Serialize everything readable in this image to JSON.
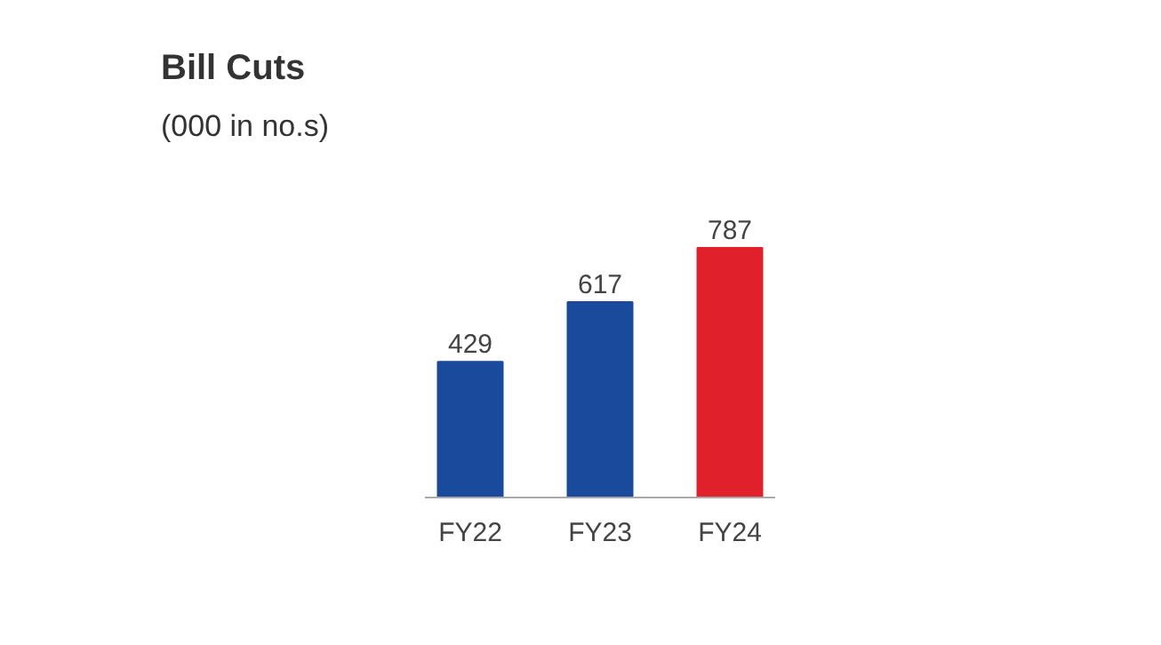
{
  "chart_data": {
    "type": "bar",
    "title": "Bill Cuts",
    "subtitle": "(000 in no.s)",
    "categories": [
      "FY22",
      "FY23",
      "FY24"
    ],
    "values": [
      429,
      617,
      787
    ],
    "colors": [
      "#1a4a9c",
      "#1a4a9c",
      "#e0202a"
    ],
    "data_labels": true,
    "grid": false
  }
}
